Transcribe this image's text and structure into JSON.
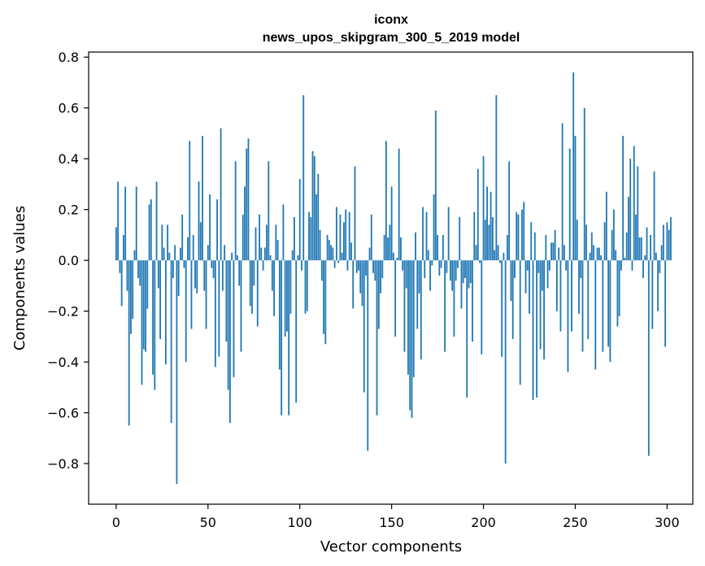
{
  "chart_data": {
    "type": "bar",
    "title": "iconx",
    "subtitle": "news_upos_skipgram_300_5_2019 model",
    "xlabel": "Vector components",
    "ylabel": "Components values",
    "xlim": [
      -15,
      314
    ],
    "ylim": [
      -0.96,
      0.82
    ],
    "xticks": [
      0,
      50,
      100,
      150,
      200,
      250,
      300
    ],
    "xtick_labels": [
      "0",
      "50",
      "100",
      "150",
      "200",
      "250",
      "300"
    ],
    "yticks": [
      0.8,
      0.6,
      0.4,
      0.2,
      0.0,
      -0.2,
      -0.4,
      -0.6,
      -0.8
    ],
    "ytick_labels": [
      "0.8",
      "0.6",
      "0.4",
      "0.2",
      "0.0",
      "−0.2",
      "−0.4",
      "−0.6",
      "−0.8"
    ],
    "bar_color": "#1f77b4",
    "grid": false,
    "values": [
      0.13,
      0.31,
      -0.05,
      -0.18,
      0.1,
      0.29,
      -0.12,
      -0.65,
      -0.29,
      -0.23,
      0.04,
      0.29,
      -0.07,
      -0.1,
      -0.49,
      -0.35,
      -0.36,
      -0.19,
      0.22,
      0.24,
      -0.45,
      -0.51,
      0.31,
      -0.11,
      -0.31,
      0.14,
      0.05,
      -0.41,
      0.14,
      0.03,
      -0.64,
      -0.07,
      0.06,
      -0.88,
      -0.14,
      0.05,
      0.18,
      -0.03,
      -0.4,
      0.09,
      0.47,
      -0.27,
      0.1,
      -0.11,
      -0.13,
      0.31,
      0.15,
      0.49,
      -0.12,
      -0.27,
      0.06,
      0.26,
      -0.03,
      -0.07,
      -0.42,
      0.24,
      -0.38,
      0.52,
      -0.12,
      0.06,
      -0.32,
      -0.51,
      -0.64,
      0.03,
      -0.46,
      0.39,
      0.02,
      -0.1,
      -0.36,
      0.18,
      0.29,
      0.44,
      0.48,
      -0.18,
      -0.21,
      -0.1,
      0.13,
      -0.26,
      0.18,
      0.05,
      -0.04,
      0.05,
      0.14,
      0.39,
      0.02,
      -0.12,
      -0.22,
      0.14,
      0.08,
      -0.43,
      -0.61,
      0.22,
      -0.3,
      -0.28,
      -0.61,
      -0.21,
      0.04,
      0.17,
      -0.56,
      0.02,
      0.32,
      -0.04,
      0.65,
      -0.21,
      -0.2,
      0.19,
      0.17,
      0.43,
      0.41,
      0.26,
      0.34,
      0.12,
      -0.08,
      -0.29,
      -0.33,
      0.1,
      0.08,
      0.06,
      0.05,
      -0.03,
      0.21,
      -0.01,
      0.18,
      0.03,
      0.15,
      0.2,
      -0.04,
      0.19,
      0.07,
      -0.19,
      0.37,
      -0.05,
      -0.04,
      -0.13,
      -0.18,
      -0.52,
      -0.06,
      -0.75,
      0.05,
      0.18,
      -0.05,
      -0.08,
      -0.61,
      -0.27,
      -0.13,
      -0.07,
      0.1,
      0.47,
      0.09,
      0.14,
      0.29,
      0.03,
      -0.3,
      0.01,
      0.44,
      0.09,
      -0.04,
      -0.36,
      -0.11,
      -0.45,
      -0.59,
      -0.62,
      -0.46,
      0.11,
      -0.27,
      -0.13,
      -0.39,
      0.21,
      -0.07,
      0.19,
      0.04,
      -0.12,
      -0.02,
      0.26,
      0.59,
      0.1,
      -0.06,
      -0.03,
      0.1,
      -0.36,
      -0.05,
      0.21,
      -0.08,
      -0.12,
      -0.3,
      -0.08,
      -0.03,
      0.17,
      -0.19,
      -0.09,
      -0.07,
      -0.54,
      -0.11,
      -0.09,
      -0.32,
      0.19,
      0.06,
      0.36,
      -0.01,
      -0.37,
      0.41,
      0.16,
      0.29,
      0.14,
      0.27,
      0.17,
      0.04,
      0.65,
      0.06,
      -0.01,
      -0.38,
      0.03,
      -0.8,
      0.1,
      0.39,
      -0.16,
      -0.31,
      -0.07,
      0.19,
      0.18,
      -0.49,
      0.2,
      0.23,
      -0.13,
      -0.04,
      -0.21,
      0.15,
      -0.55,
      0.11,
      -0.54,
      -0.05,
      -0.35,
      -0.12,
      -0.39,
      0.1,
      -0.11,
      -0.04,
      0.07,
      0.07,
      0.12,
      -0.2,
      0.05,
      -0.28,
      0.54,
      0.06,
      -0.04,
      -0.44,
      0.44,
      -0.28,
      0.74,
      0.49,
      0.16,
      -0.21,
      -0.07,
      -0.36,
      0.6,
      0.14,
      -0.31,
      0.03,
      0.11,
      0.06,
      -0.43,
      0.05,
      0.05,
      0.02,
      -0.36,
      0.15,
      0.27,
      -0.34,
      -0.4,
      0.12,
      0.2,
      0.04,
      -0.26,
      -0.22,
      -0.04,
      0.49,
      0.01,
      0.11,
      0.25,
      0.4,
      -0.04,
      0.45,
      0.18,
      0.37,
      0.09,
      0.09,
      -0.07,
      0.02,
      0.13,
      -0.77,
      0.1,
      -0.27,
      0.35,
      0.03,
      -0.2,
      -0.05,
      0.06,
      0.14,
      -0.34,
      0.15,
      0.12,
      0.17
    ]
  }
}
